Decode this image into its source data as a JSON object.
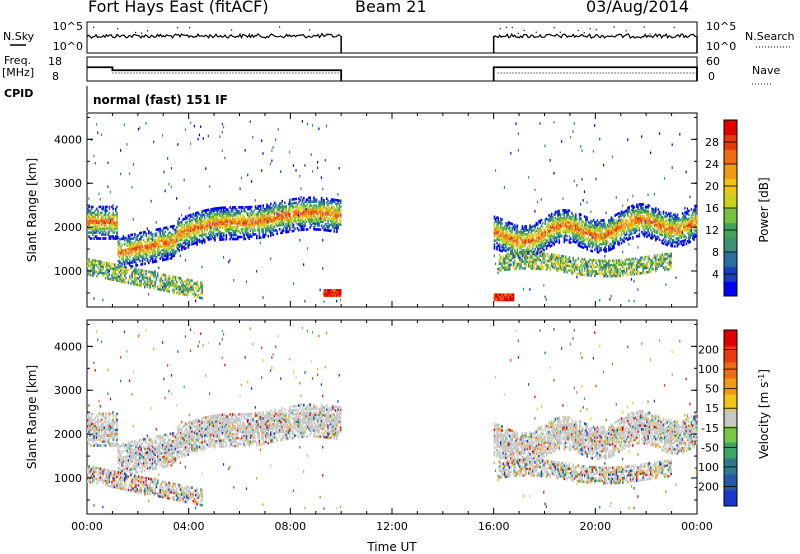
{
  "header": {
    "station": "Fort Hays East (fitACF)",
    "beam": "Beam 21",
    "date": "03/Aug/2014"
  },
  "left_labels": {
    "nsky": "N.Sky",
    "freq": "Freq.",
    "mhz": "[MHz]",
    "cpid": "CPID"
  },
  "right_labels": {
    "nsearch": "N.Search",
    "nave": "Nave"
  },
  "cpid_text": "normal (fast) 151 IF",
  "chart_data": [
    {
      "type": "line",
      "name": "noise-panel",
      "ylabel_left": "N.Sky",
      "ylabel_right": "N.Search",
      "yticks_left": [
        "10^5",
        "10^0"
      ],
      "yticks_right": [
        "10^5",
        "10^0"
      ],
      "segments": [
        {
          "x_range_h": [
            0.0,
            10.0
          ],
          "noise_level": "10^4"
        },
        {
          "x_range_h": [
            16.0,
            24.0
          ],
          "noise_level": "10^4"
        }
      ]
    },
    {
      "type": "line",
      "name": "frequency-panel",
      "ylabel_left": "Freq. [MHz]",
      "ylabel_right": "Nave",
      "yticks_left": [
        18,
        8
      ],
      "yticks_right": [
        60,
        0
      ],
      "freq_steps": [
        {
          "x_h": [
            0.0,
            1.0
          ],
          "freq_mhz": 16.5
        },
        {
          "x_h": [
            1.0,
            10.0
          ],
          "freq_mhz": 14.5
        },
        {
          "x_h": [
            16.0,
            24.0
          ],
          "freq_mhz": 16.5
        }
      ]
    },
    {
      "type": "heatmap",
      "name": "power",
      "ylabel": "Slant Range [km]",
      "yticks": [
        1000,
        2000,
        3000,
        4000
      ],
      "ylim": [
        180,
        4600
      ],
      "colorbar": {
        "label": "Power [dB]",
        "ticks": [
          4,
          8,
          12,
          16,
          20,
          24,
          28
        ],
        "range": [
          0,
          32
        ],
        "colors": [
          "#0000ff",
          "#1a3fb4",
          "#2a6fa0",
          "#3d8f75",
          "#40a458",
          "#78c040",
          "#c8d21e",
          "#f0c419",
          "#f09a17",
          "#f06a14",
          "#e63a10",
          "#e00000"
        ]
      }
    },
    {
      "type": "heatmap",
      "name": "velocity",
      "ylabel": "Slant Range [km]",
      "yticks": [
        1000,
        2000,
        3000,
        4000
      ],
      "ylim": [
        180,
        4600
      ],
      "xlabel": "Time UT",
      "xticks": [
        "00:00",
        "04:00",
        "08:00",
        "12:00",
        "16:00",
        "20:00",
        "00:00"
      ],
      "xlim_h": [
        0,
        24
      ],
      "colorbar": {
        "label": "Velocity [m s-1]",
        "label_unit": "m s",
        "label_exp": "-1",
        "ticks": [
          200,
          100,
          50,
          15,
          -15,
          -50,
          -100,
          -200
        ],
        "colors": [
          "#1a35c8",
          "#2a56a8",
          "#2e7a8a",
          "#3aa66a",
          "#79c84a",
          "#c8c8c8",
          "#f0c419",
          "#f09a17",
          "#f06a14",
          "#e63a10",
          "#e00000"
        ]
      }
    }
  ]
}
